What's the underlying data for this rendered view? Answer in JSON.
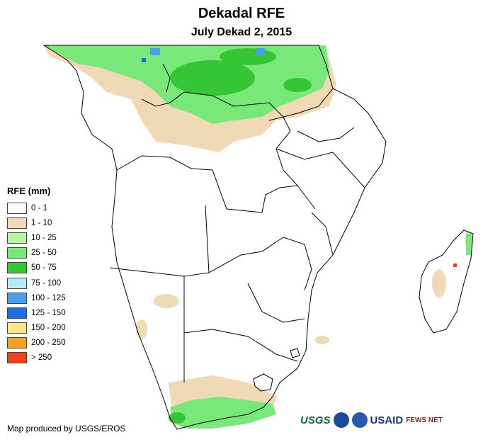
{
  "header": {
    "title": "Dekadal RFE",
    "subtitle": "July Dekad 2, 2015"
  },
  "legend": {
    "title": "RFE (mm)",
    "items": [
      {
        "label": "0 - 1",
        "color": "#ffffff"
      },
      {
        "label": "1 - 10",
        "color": "#f0d9b5"
      },
      {
        "label": "10 - 25",
        "color": "#b4f5a0"
      },
      {
        "label": "25 - 50",
        "color": "#78e878"
      },
      {
        "label": "50 - 75",
        "color": "#34c634"
      },
      {
        "label": "75 - 100",
        "color": "#b4ecf8"
      },
      {
        "label": "100 - 125",
        "color": "#4aa0f0"
      },
      {
        "label": "125 - 150",
        "color": "#1a6ee8"
      },
      {
        "label": "150 - 200",
        "color": "#fde484"
      },
      {
        "label": "200 - 250",
        "color": "#f6a21e"
      },
      {
        "label": "> 250",
        "color": "#f0421a"
      }
    ]
  },
  "footer": {
    "credit": "Map produced by USGS/EROS",
    "logos": [
      "USGS",
      "USAID",
      "FEWS NET"
    ]
  }
}
